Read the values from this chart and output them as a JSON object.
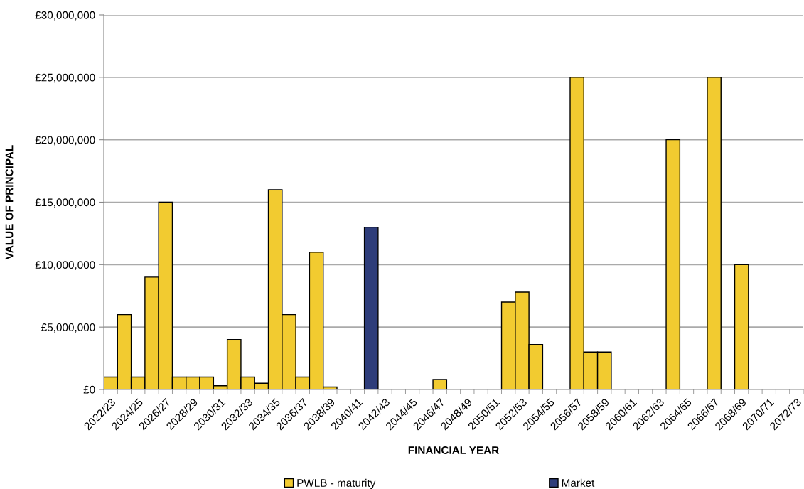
{
  "chart_data": {
    "type": "bar",
    "xlabel": "FINANCIAL YEAR",
    "ylabel": "VALUE OF PRINCIPAL",
    "categories": [
      "2022/23",
      null,
      "2024/25",
      null,
      "2026/27",
      null,
      "2028/29",
      null,
      "2030/31",
      null,
      "2032/33",
      null,
      "2034/35",
      null,
      "2036/37",
      null,
      "2038/39",
      null,
      "2040/41",
      null,
      "2042/43",
      null,
      "2044/45",
      null,
      "2046/47",
      null,
      "2048/49",
      null,
      "2050/51",
      null,
      "2052/53",
      null,
      "2054/55",
      null,
      "2056/57",
      null,
      "2058/59",
      null,
      "2060/61",
      null,
      "2062/63",
      null,
      "2064/65",
      null,
      "2066/67",
      null,
      "2068/69",
      null,
      "2070/71",
      null,
      "2072/73"
    ],
    "series": [
      {
        "name": "PWLB - maturity",
        "color": "#f2cb30",
        "values": [
          1000000,
          6000000,
          1000000,
          9000000,
          15000000,
          1000000,
          1000000,
          1000000,
          300000,
          4000000,
          1000000,
          500000,
          16000000,
          6000000,
          1000000,
          11000000,
          200000,
          null,
          null,
          null,
          null,
          null,
          null,
          null,
          800000,
          null,
          null,
          null,
          null,
          7000000,
          7800000,
          3600000,
          null,
          null,
          25000000,
          3000000,
          3000000,
          null,
          null,
          null,
          null,
          20000000,
          null,
          null,
          25000000,
          null,
          10000000,
          null,
          null,
          null,
          null
        ]
      },
      {
        "name": "Market",
        "color": "#2e3d7a",
        "values": [
          null,
          null,
          null,
          null,
          null,
          null,
          null,
          null,
          null,
          null,
          null,
          null,
          null,
          null,
          null,
          null,
          null,
          null,
          null,
          13000000,
          null,
          null,
          null,
          null,
          null,
          null,
          null,
          null,
          null,
          null,
          null,
          null,
          null,
          null,
          null,
          null,
          null,
          null,
          null,
          null,
          null,
          null,
          null,
          null,
          null,
          null,
          null,
          null,
          null,
          null,
          null
        ]
      }
    ],
    "ylim": [
      0,
      30000000
    ],
    "yticks": [
      {
        "value": 0,
        "label": "£0"
      },
      {
        "value": 5000000,
        "label": "£5,000,000"
      },
      {
        "value": 10000000,
        "label": "£10,000,000"
      },
      {
        "value": 15000000,
        "label": "£15,000,000"
      },
      {
        "value": 20000000,
        "label": "£20,000,000"
      },
      {
        "value": 25000000,
        "label": "£25,000,000"
      },
      {
        "value": 30000000,
        "label": "£30,000,000"
      }
    ],
    "grid": "y",
    "legend": "bottom"
  }
}
